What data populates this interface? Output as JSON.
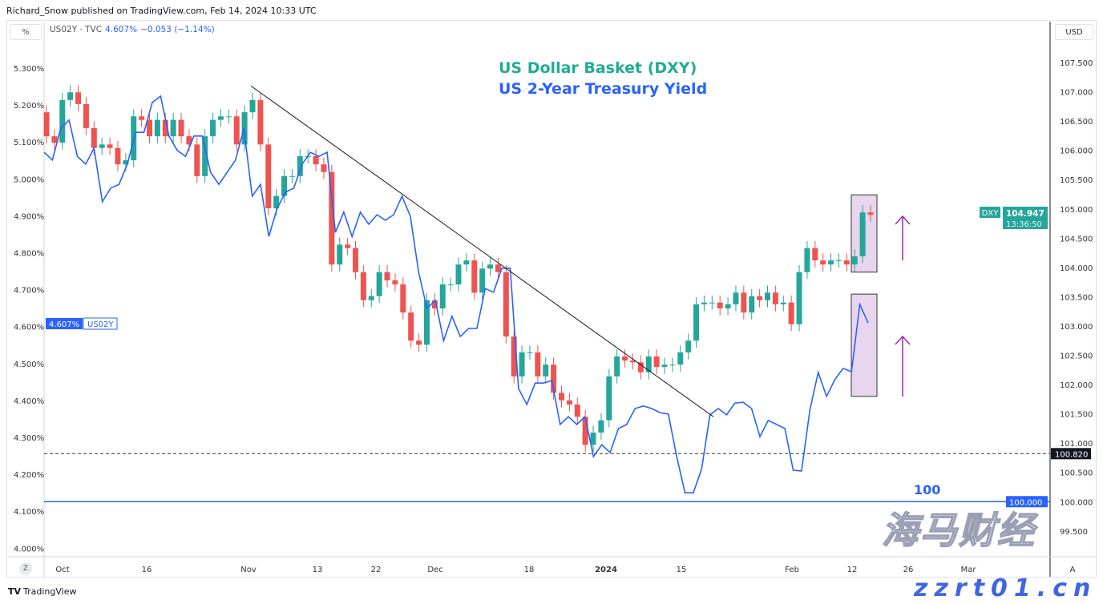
{
  "header": {
    "published": "Richard_Snow published on TradingView.com, Feb 14, 2024 10:33 UTC",
    "scale_left": "%",
    "scale_right": "USD",
    "symbol": "US02Y · TVC",
    "value": "4.607%",
    "change": "−0.053 (−1.14%)"
  },
  "footer": {
    "logo": "TradingView",
    "zoom_button": "Z"
  },
  "watermark": {
    "text1": "海马财经",
    "text2": "zzrt01.cn"
  },
  "colors": {
    "up": "#26a69a",
    "down": "#ef5350",
    "yield": "#2962ff",
    "dxy_title": "#22ab94",
    "box": "#e8d5ee",
    "arrow": "#9c27b0"
  },
  "chart_data": {
    "type": "candlestick+line",
    "annotations": {
      "title_dxy": "US Dollar Basket (DXY)",
      "title_yield": "US 2-Year Treasury Yield",
      "level_label": "100"
    },
    "x_ticks": [
      "Oct",
      "16",
      "Nov",
      "13",
      "22",
      "Dec",
      "18",
      "2024",
      "15",
      "Feb",
      "12",
      "26",
      "Mar",
      "A"
    ],
    "y_left": {
      "ticks": [
        "5.300%",
        "5.200%",
        "5.100%",
        "5.000%",
        "4.900%",
        "4.800%",
        "4.700%",
        "4.600%",
        "4.500%",
        "4.400%",
        "4.300%",
        "4.200%",
        "4.100%",
        "4.000%"
      ],
      "range": [
        3.97,
        5.36
      ]
    },
    "y_right": {
      "ticks": [
        "107.500",
        "107.000",
        "106.500",
        "106.000",
        "105.500",
        "105.000",
        "104.500",
        "104.000",
        "103.500",
        "103.000",
        "102.500",
        "102.000",
        "101.500",
        "101.000",
        "100.500",
        "100.000",
        "99.500"
      ],
      "range": [
        99.22,
        107.94
      ]
    },
    "dxy": {
      "name": "DXY",
      "first_open": 106.65,
      "closes": [
        106.24,
        106.13,
        106.86,
        106.99,
        106.79,
        106.38,
        106.04,
        106.1,
        106.04,
        105.76,
        105.83,
        106.58,
        106.52,
        106.24,
        106.52,
        106.24,
        106.52,
        106.24,
        106.1,
        105.56,
        106.24,
        106.52,
        106.58,
        106.58,
        106.1,
        106.65,
        106.86,
        106.1,
        105.01,
        105.22,
        105.56,
        105.56,
        105.9,
        105.9,
        105.76,
        105.63,
        104.05,
        104.39,
        104.33,
        103.92,
        103.44,
        103.51,
        103.92,
        103.78,
        103.71,
        103.23,
        102.75,
        102.68,
        103.44,
        103.3,
        103.71,
        103.71,
        104.05,
        104.12,
        103.57,
        103.98,
        104.05,
        103.92,
        102.82,
        102.14,
        102.55,
        102.55,
        102.14,
        102.34,
        101.86,
        101.73,
        101.66,
        101.45,
        100.97,
        101.18,
        101.39,
        102.14,
        102.48,
        102.41,
        102.38,
        102.21,
        102.48,
        102.3,
        102.34,
        102.34,
        102.55,
        102.75,
        103.37,
        103.4,
        103.4,
        103.3,
        103.37,
        103.57,
        103.23,
        103.51,
        103.44,
        103.57,
        103.37,
        103.4,
        103.03,
        103.92,
        104.33,
        104.12,
        104.05,
        104.12,
        104.12,
        104.05,
        104.19,
        104.94,
        104.9
      ],
      "last": "104.947",
      "countdown": "13:36:50"
    },
    "yield": {
      "name": "US02Y",
      "last": "4.607%",
      "values": [
        5.072,
        5.051,
        5.137,
        5.159,
        5.061,
        5.04,
        5.083,
        4.938,
        4.975,
        4.985,
        5.04,
        5.126,
        5.126,
        5.207,
        5.224,
        5.116,
        5.077,
        5.061,
        5.116,
        5.116,
        5.018,
        4.985,
        5.018,
        5.051,
        5.137,
        4.953,
        4.985,
        4.844,
        4.92,
        4.964,
        4.975,
        5.04,
        5.072,
        5.061,
        5.072,
        4.855,
        4.91,
        4.844,
        4.91,
        4.877,
        4.903,
        4.888,
        4.903,
        4.953,
        4.899,
        4.747,
        4.649,
        4.671,
        4.562,
        4.628,
        4.573,
        4.595,
        4.595,
        4.703,
        4.693,
        4.758,
        4.758,
        4.432,
        4.389,
        4.447,
        4.447,
        4.454,
        4.335,
        4.356,
        4.335,
        4.356,
        4.248,
        4.28,
        4.259,
        4.324,
        4.335,
        4.378,
        4.385,
        4.378,
        4.367,
        4.363,
        4.248,
        4.15,
        4.15,
        4.215,
        4.361,
        4.378,
        4.361,
        4.393,
        4.395,
        4.378,
        4.302,
        4.346,
        4.335,
        4.324,
        4.211,
        4.209,
        4.374,
        4.476,
        4.411,
        4.456,
        4.487,
        4.478,
        4.66,
        4.61
      ]
    },
    "trendline": {
      "from": 107.1,
      "to": 101.45
    },
    "dashed_level": "100.820",
    "solid_level": "100.000",
    "box_dxy": [
      103.92,
      105.24
    ],
    "box_yield": [
      4.411,
      4.688
    ]
  }
}
